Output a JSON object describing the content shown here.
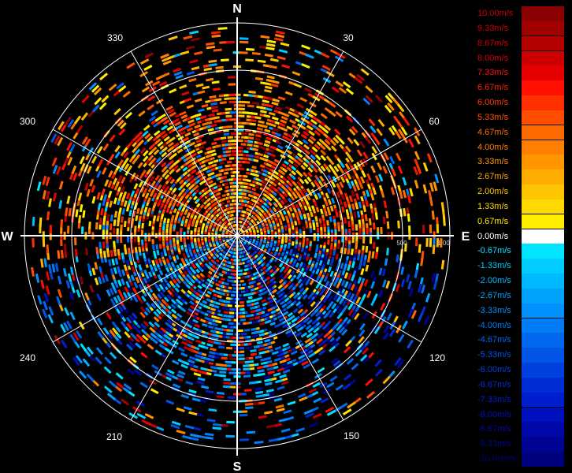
{
  "radar_display": {
    "cardinal_labels": {
      "north": "N",
      "south": "S",
      "east": "E",
      "west": "W"
    },
    "angle_labels": [
      "30",
      "60",
      "120",
      "150",
      "210",
      "240",
      "300",
      "330"
    ],
    "range_ring_labels": [
      "500",
      "1 00"
    ]
  },
  "legend": {
    "entries": [
      {
        "label": "10.00m/s",
        "color": "#8b0000",
        "text_color": "#c80000"
      },
      {
        "label": "9.33m/s",
        "color": "#a00000",
        "text_color": "#c80000"
      },
      {
        "label": "8.67m/s",
        "color": "#b40000",
        "text_color": "#d00000"
      },
      {
        "label": "8.00m/s",
        "color": "#cc0000",
        "text_color": "#e00000"
      },
      {
        "label": "7.33m/s",
        "color": "#e50000",
        "text_color": "#ff1010"
      },
      {
        "label": "6.67m/s",
        "color": "#ff1000",
        "text_color": "#ff2000"
      },
      {
        "label": "6.00m/s",
        "color": "#ff3000",
        "text_color": "#ff3a00"
      },
      {
        "label": "5.33m/s",
        "color": "#ff4e00",
        "text_color": "#ff5000"
      },
      {
        "label": "4.67m/s",
        "color": "#ff6a00",
        "text_color": "#ff6a00"
      },
      {
        "label": "4.00m/s",
        "color": "#ff8000",
        "text_color": "#ff8000"
      },
      {
        "label": "3.33m/s",
        "color": "#ff9600",
        "text_color": "#ff9600"
      },
      {
        "label": "2.67m/s",
        "color": "#ffac00",
        "text_color": "#ffac00"
      },
      {
        "label": "2.00m/s",
        "color": "#ffc400",
        "text_color": "#ffc400"
      },
      {
        "label": "1.33m/s",
        "color": "#ffd800",
        "text_color": "#ffd800"
      },
      {
        "label": "0.67m/s",
        "color": "#ffee00",
        "text_color": "#ffee00"
      },
      {
        "label": "0.00m/s",
        "color": "#ffffff",
        "text_color": "#ffffff"
      },
      {
        "label": "-0.67m/s",
        "color": "#00e5ff",
        "text_color": "#00e5ff"
      },
      {
        "label": "-1.33m/s",
        "color": "#00ccff",
        "text_color": "#00ccff"
      },
      {
        "label": "-2.00m/s",
        "color": "#00b8ff",
        "text_color": "#00b8ff"
      },
      {
        "label": "-2.67m/s",
        "color": "#00a4ff",
        "text_color": "#00a4ff"
      },
      {
        "label": "-3.33m/s",
        "color": "#0090ff",
        "text_color": "#0090ff"
      },
      {
        "label": "-4.00m/s",
        "color": "#007cf5",
        "text_color": "#007cf5"
      },
      {
        "label": "-4.67m/s",
        "color": "#0068ee",
        "text_color": "#0068ee"
      },
      {
        "label": "-5.33m/s",
        "color": "#0054e6",
        "text_color": "#0054e6"
      },
      {
        "label": "-6.00m/s",
        "color": "#0040de",
        "text_color": "#0040de"
      },
      {
        "label": "-6.67m/s",
        "color": "#002ed6",
        "text_color": "#002ed6"
      },
      {
        "label": "-7.33m/s",
        "color": "#001ece",
        "text_color": "#001ece"
      },
      {
        "label": "-8.00m/s",
        "color": "#0010c0",
        "text_color": "#0010c0"
      },
      {
        "label": "-8.67m/s",
        "color": "#0008aa",
        "text_color": "#0008aa"
      },
      {
        "label": "-9.33m/s",
        "color": "#000494",
        "text_color": "#000494"
      },
      {
        "label": "-10.00m/s",
        "color": "#00007c",
        "text_color": "#00007c"
      }
    ]
  }
}
